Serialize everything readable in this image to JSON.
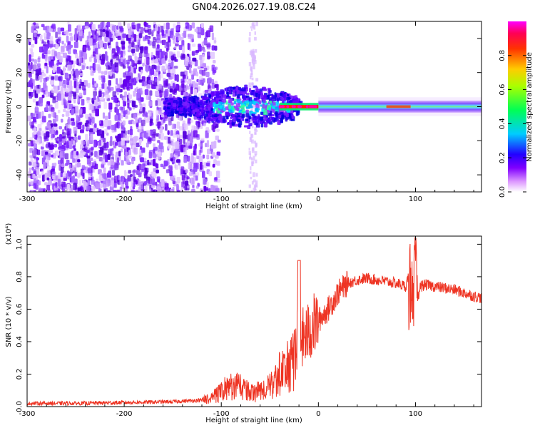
{
  "figure_title": "GN04.2026.027.19.08.C24",
  "chart_data": [
    {
      "type": "heatmap",
      "title": "GN04.2026.027.19.08.C24",
      "xlabel": "Height of straight line (km)",
      "ylabel": "Frequency (Hz)",
      "xlim": [
        -300,
        168
      ],
      "ylim": [
        -50,
        50
      ],
      "xticks": [
        -300,
        -200,
        -100,
        0,
        100
      ],
      "xtick_labels": [
        "-300",
        "-200",
        "-100",
        "0",
        "100"
      ],
      "yticks": [
        -40,
        -20,
        0,
        20,
        40
      ],
      "ytick_labels": [
        "-40",
        "-20",
        "0",
        "20",
        "40"
      ],
      "colorbar": {
        "label": "Normalized spectral amplitude",
        "range": [
          0,
          1
        ],
        "ticks": [
          0.0,
          0.2,
          0.4,
          0.6,
          0.8
        ],
        "tick_labels": [
          "0.0",
          "0.2",
          "0.4",
          "0.6",
          "0.8"
        ],
        "colormap": [
          "#ffffff",
          "#cc99ff",
          "#8000ff",
          "#0000ff",
          "#00ffff",
          "#00ff00",
          "#ffff00",
          "#ff8000",
          "#ff0000",
          "#ff00ff"
        ]
      },
      "regions": [
        {
          "name": "noise",
          "x_range": [
            -300,
            -125
          ],
          "freq_range": [
            -50,
            50
          ],
          "amplitude": 0.1
        },
        {
          "name": "transition",
          "x_range": [
            -160,
            -20
          ],
          "freq_range": [
            -8,
            10
          ],
          "amplitude": 0.35
        },
        {
          "name": "peak",
          "x_range": [
            -40,
            0
          ],
          "freq_range": [
            -1,
            1
          ],
          "amplitude": 0.95
        },
        {
          "name": "signal",
          "x_range": [
            0,
            168
          ],
          "freq_range": [
            -3,
            3
          ],
          "amplitude": 0.5
        }
      ]
    },
    {
      "type": "line",
      "xlabel": "Height of straight line (km)",
      "ylabel": "SNR (10 * v/v)",
      "y_multiplier": "(x10⁴)",
      "xlim": [
        -300,
        168
      ],
      "ylim": [
        0,
        1.05
      ],
      "xticks": [
        -300,
        -200,
        -100,
        0,
        100
      ],
      "xtick_labels": [
        "-300",
        "-200",
        "-100",
        "0",
        "100"
      ],
      "yticks": [
        0.0,
        0.2,
        0.4,
        0.6,
        0.8,
        1.0
      ],
      "ytick_labels": [
        "0.0",
        "0.2",
        "0.4",
        "0.6",
        "0.8",
        "1.0"
      ],
      "series": [
        {
          "name": "SNR",
          "color": "#ee3322",
          "x": [
            -300,
            -250,
            -200,
            -150,
            -120,
            -110,
            -100,
            -90,
            -80,
            -70,
            -60,
            -50,
            -40,
            -30,
            -25,
            -20,
            -15,
            -10,
            -5,
            0,
            10,
            20,
            30,
            40,
            50,
            60,
            70,
            80,
            90,
            95,
            98,
            100,
            105,
            110,
            120,
            130,
            140,
            150,
            160,
            168
          ],
          "values": [
            0.02,
            0.02,
            0.025,
            0.03,
            0.04,
            0.05,
            0.1,
            0.12,
            0.13,
            0.08,
            0.1,
            0.12,
            0.2,
            0.25,
            0.3,
            0.4,
            0.42,
            0.45,
            0.5,
            0.53,
            0.6,
            0.7,
            0.76,
            0.78,
            0.79,
            0.78,
            0.77,
            0.76,
            0.74,
            0.86,
            0.5,
            0.6,
            0.74,
            0.75,
            0.74,
            0.73,
            0.72,
            0.7,
            0.68,
            0.67
          ]
        }
      ]
    }
  ]
}
